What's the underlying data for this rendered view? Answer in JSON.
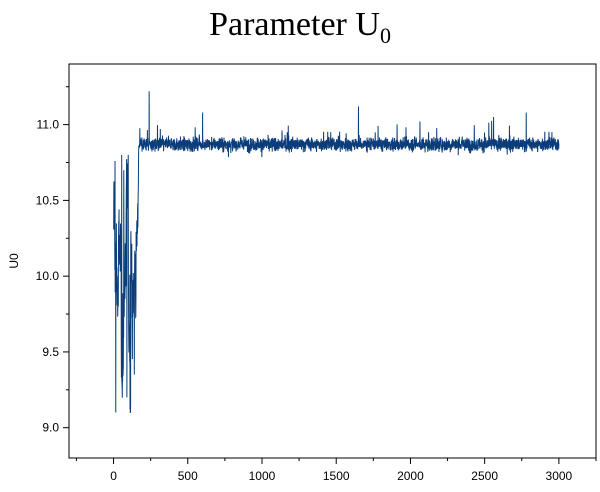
{
  "chart_data": {
    "type": "line",
    "title_main": "Parameter U",
    "title_sub": "0",
    "xlabel": "",
    "ylabel": "U0",
    "xlim": [
      -300,
      3250
    ],
    "ylim": [
      8.8,
      11.4
    ],
    "xticks": [
      0,
      500,
      1000,
      1500,
      2000,
      2500,
      3000
    ],
    "xtick_labels": [
      "0",
      "500",
      "1000",
      "1500",
      "2000",
      "2500",
      "3000"
    ],
    "yticks": [
      9.0,
      9.5,
      10.0,
      10.5,
      11.0
    ],
    "ytick_labels": [
      "9.0",
      "9.5",
      "10.0",
      "10.5",
      "11.0"
    ],
    "grid": false,
    "line_color": "#0b3d7a",
    "series": [
      {
        "name": "",
        "n_iterations": 3000,
        "burn_in": {
          "x_range": [
            1,
            170
          ],
          "min": 9.1,
          "max": 10.8,
          "center": 10.0
        },
        "stationary": {
          "x_range": [
            170,
            3000
          ],
          "mean": 10.87,
          "min": 10.74,
          "max": 11.22
        },
        "peaks": [
          {
            "x": 10,
            "y": 10.76
          },
          {
            "x": 15,
            "y": 9.1
          },
          {
            "x": 55,
            "y": 10.8
          },
          {
            "x": 90,
            "y": 9.2
          },
          {
            "x": 140,
            "y": 9.35
          },
          {
            "x": 240,
            "y": 11.22
          },
          {
            "x": 600,
            "y": 11.08
          },
          {
            "x": 1650,
            "y": 11.12
          },
          {
            "x": 2560,
            "y": 11.05
          },
          {
            "x": 2780,
            "y": 11.08
          }
        ]
      }
    ]
  }
}
